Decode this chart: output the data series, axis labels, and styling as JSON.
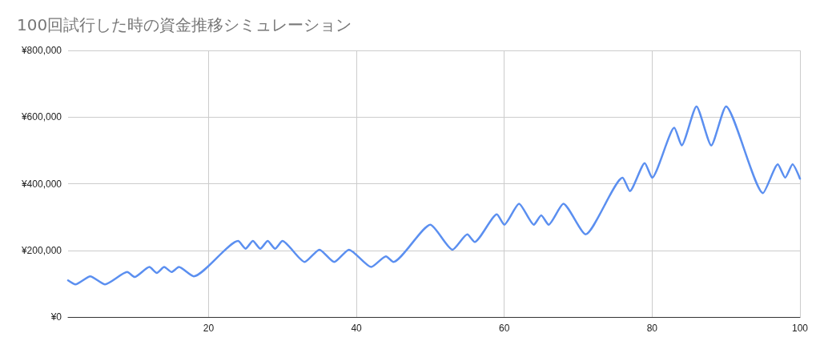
{
  "chart_data": {
    "type": "line",
    "title": "100回試行した時の資金推移シミュレーション",
    "x": [
      1,
      2,
      4,
      6,
      9,
      10,
      12,
      13,
      14,
      15,
      16,
      18,
      24,
      25,
      26,
      27,
      28,
      29,
      30,
      33,
      35,
      37,
      39,
      42,
      44,
      45,
      50,
      53,
      55,
      56,
      59,
      60,
      62,
      64,
      65,
      66,
      68,
      71,
      76,
      77,
      79,
      80,
      83,
      84,
      86,
      88,
      90,
      95,
      97,
      98,
      99,
      100
    ],
    "series": [
      {
        "color": "#5b8ff0",
        "values": [
          110000,
          98000,
          122000,
          98000,
          135000,
          120000,
          150000,
          132000,
          150000,
          135000,
          150000,
          122000,
          228000,
          205000,
          228000,
          205000,
          228000,
          205000,
          228000,
          165000,
          202000,
          165000,
          202000,
          150000,
          182000,
          165000,
          277000,
          202000,
          248000,
          225000,
          308000,
          277000,
          340000,
          277000,
          305000,
          277000,
          340000,
          248000,
          418000,
          378000,
          462000,
          418000,
          568000,
          515000,
          632000,
          515000,
          632000,
          372000,
          458000,
          418000,
          458000,
          415000
        ]
      }
    ],
    "xlim": [
      1,
      100
    ],
    "xticks": [
      20,
      40,
      60,
      80,
      100
    ],
    "ylim": [
      0,
      800000
    ],
    "yticks": [
      {
        "value": 0,
        "label": "¥0"
      },
      {
        "value": 200000,
        "label": "¥200,000"
      },
      {
        "value": 400000,
        "label": "¥400,000"
      },
      {
        "value": 600000,
        "label": "¥600,000"
      },
      {
        "value": 800000,
        "label": "¥800,000"
      }
    ],
    "grid": true,
    "marker": "none",
    "line_style": "solid"
  }
}
